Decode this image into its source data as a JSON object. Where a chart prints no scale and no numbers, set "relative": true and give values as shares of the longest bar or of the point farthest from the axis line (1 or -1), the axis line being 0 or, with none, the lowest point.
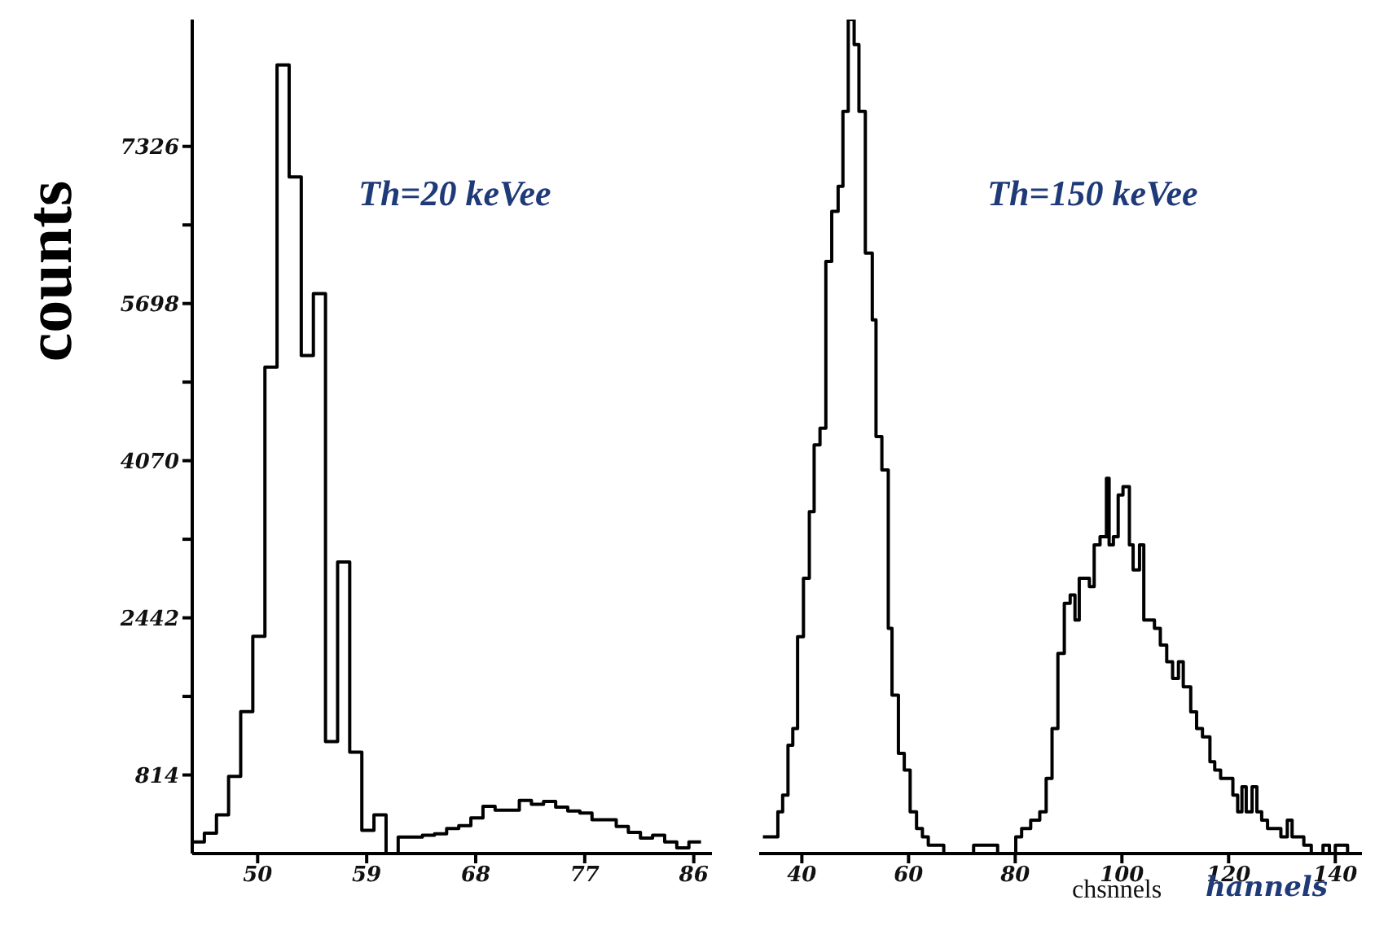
{
  "chart_data": [
    {
      "type": "histogram",
      "ylabel": "counts",
      "annotations": [
        "Th=20 keVee"
      ],
      "bins": [
        44.6,
        45.6,
        46.6,
        47.6,
        48.6,
        49.6,
        50.6,
        51.6,
        52.6,
        53.6,
        54.6,
        55.6,
        56.6,
        57.6,
        58.6,
        59.6,
        60.6,
        61.6,
        62.6,
        63.6,
        64.6,
        65.6,
        66.6,
        67.6,
        68.6,
        69.6,
        70.6,
        71.6,
        72.6,
        73.6,
        74.6,
        75.6,
        76.6,
        77.6,
        78.6,
        79.6,
        80.6,
        81.6,
        82.6,
        83.6,
        84.6,
        85.6,
        86.6
      ],
      "values": [
        120,
        210,
        400,
        800,
        1470,
        2250,
        5040,
        8170,
        7010,
        5160,
        5800,
        1160,
        3020,
        1050,
        240,
        400,
        0,
        170,
        170,
        190,
        205,
        260,
        290,
        370,
        490,
        450,
        450,
        550,
        510,
        540,
        480,
        440,
        420,
        350,
        350,
        280,
        220,
        160,
        190,
        120,
        60,
        120
      ],
      "color": "#000000",
      "xlim": [
        44.6,
        87.5
      ],
      "xticks": [
        50,
        59,
        68,
        77,
        86
      ],
      "ylim": [
        0,
        8640
      ],
      "yticks": [
        814,
        {
          "value": 1628,
          "label": null
        },
        2442,
        {
          "value": 3256,
          "label": null
        },
        4070,
        {
          "value": 4884,
          "label": null
        },
        5698,
        {
          "value": 6512,
          "label": null
        },
        7326
      ]
    },
    {
      "type": "step",
      "relative": true,
      "xlabel": "hannels",
      "annotations": [
        "Th=150 keVee",
        "chsnnels"
      ],
      "color": "#000000",
      "x": [
        32.7,
        35.5,
        36.4,
        37.4,
        38.3,
        39.2,
        40.3,
        41.4,
        42.3,
        43.4,
        44.5,
        45.6,
        46.8,
        47.7,
        48.7,
        49.8,
        50.7,
        51.9,
        53.2,
        53.9,
        55.0,
        56.2,
        56.9,
        58.1,
        59.2,
        60.3,
        61.5,
        62.6,
        63.7,
        66.6,
        72.2,
        73.3,
        76.7,
        80.1,
        81.2,
        82.9,
        84.6,
        85.8,
        86.9,
        88.0,
        89.2,
        90.3,
        91.2,
        92.0,
        92.8,
        93.9,
        94.8,
        95.9,
        97.1,
        97.6,
        98.4,
        99.3,
        100.2,
        101.4,
        102.1,
        103.3,
        104.1,
        105.0,
        106.1,
        107.2,
        108.4,
        109.5,
        110.6,
        111.5,
        112.9,
        114.0,
        115.1,
        116.5,
        117.4,
        118.5,
        119.7,
        120.8,
        121.7,
        122.5,
        123.3,
        124.4,
        125.3,
        126.2,
        127.3,
        128.5,
        129.8,
        131.0,
        131.9,
        133.0,
        134.1,
        135.5,
        137.7,
        138.9,
        140.0,
        141.1,
        142.3,
        144.5
      ],
      "values": [
        0.02,
        0.05,
        0.07,
        0.13,
        0.15,
        0.26,
        0.33,
        0.41,
        0.49,
        0.51,
        0.71,
        0.77,
        0.8,
        0.89,
        1.0,
        0.97,
        0.89,
        0.72,
        0.64,
        0.5,
        0.46,
        0.27,
        0.19,
        0.12,
        0.1,
        0.05,
        0.03,
        0.02,
        0.01,
        0.0,
        0.01,
        0.01,
        0.0,
        0.02,
        0.03,
        0.04,
        0.05,
        0.09,
        0.15,
        0.24,
        0.3,
        0.31,
        0.28,
        0.33,
        0.33,
        0.32,
        0.37,
        0.38,
        0.45,
        0.37,
        0.38,
        0.43,
        0.44,
        0.37,
        0.34,
        0.37,
        0.28,
        0.28,
        0.27,
        0.25,
        0.23,
        0.21,
        0.23,
        0.2,
        0.17,
        0.15,
        0.14,
        0.11,
        0.1,
        0.09,
        0.09,
        0.07,
        0.05,
        0.08,
        0.05,
        0.08,
        0.05,
        0.04,
        0.03,
        0.03,
        0.02,
        0.04,
        0.02,
        0.02,
        0.01,
        0.0,
        0.01,
        0.0,
        0.01,
        0.01,
        0.0,
        0.0
      ],
      "xlim": [
        32,
        145
      ],
      "xticks": [
        40,
        60,
        80,
        100,
        120,
        140
      ]
    }
  ]
}
